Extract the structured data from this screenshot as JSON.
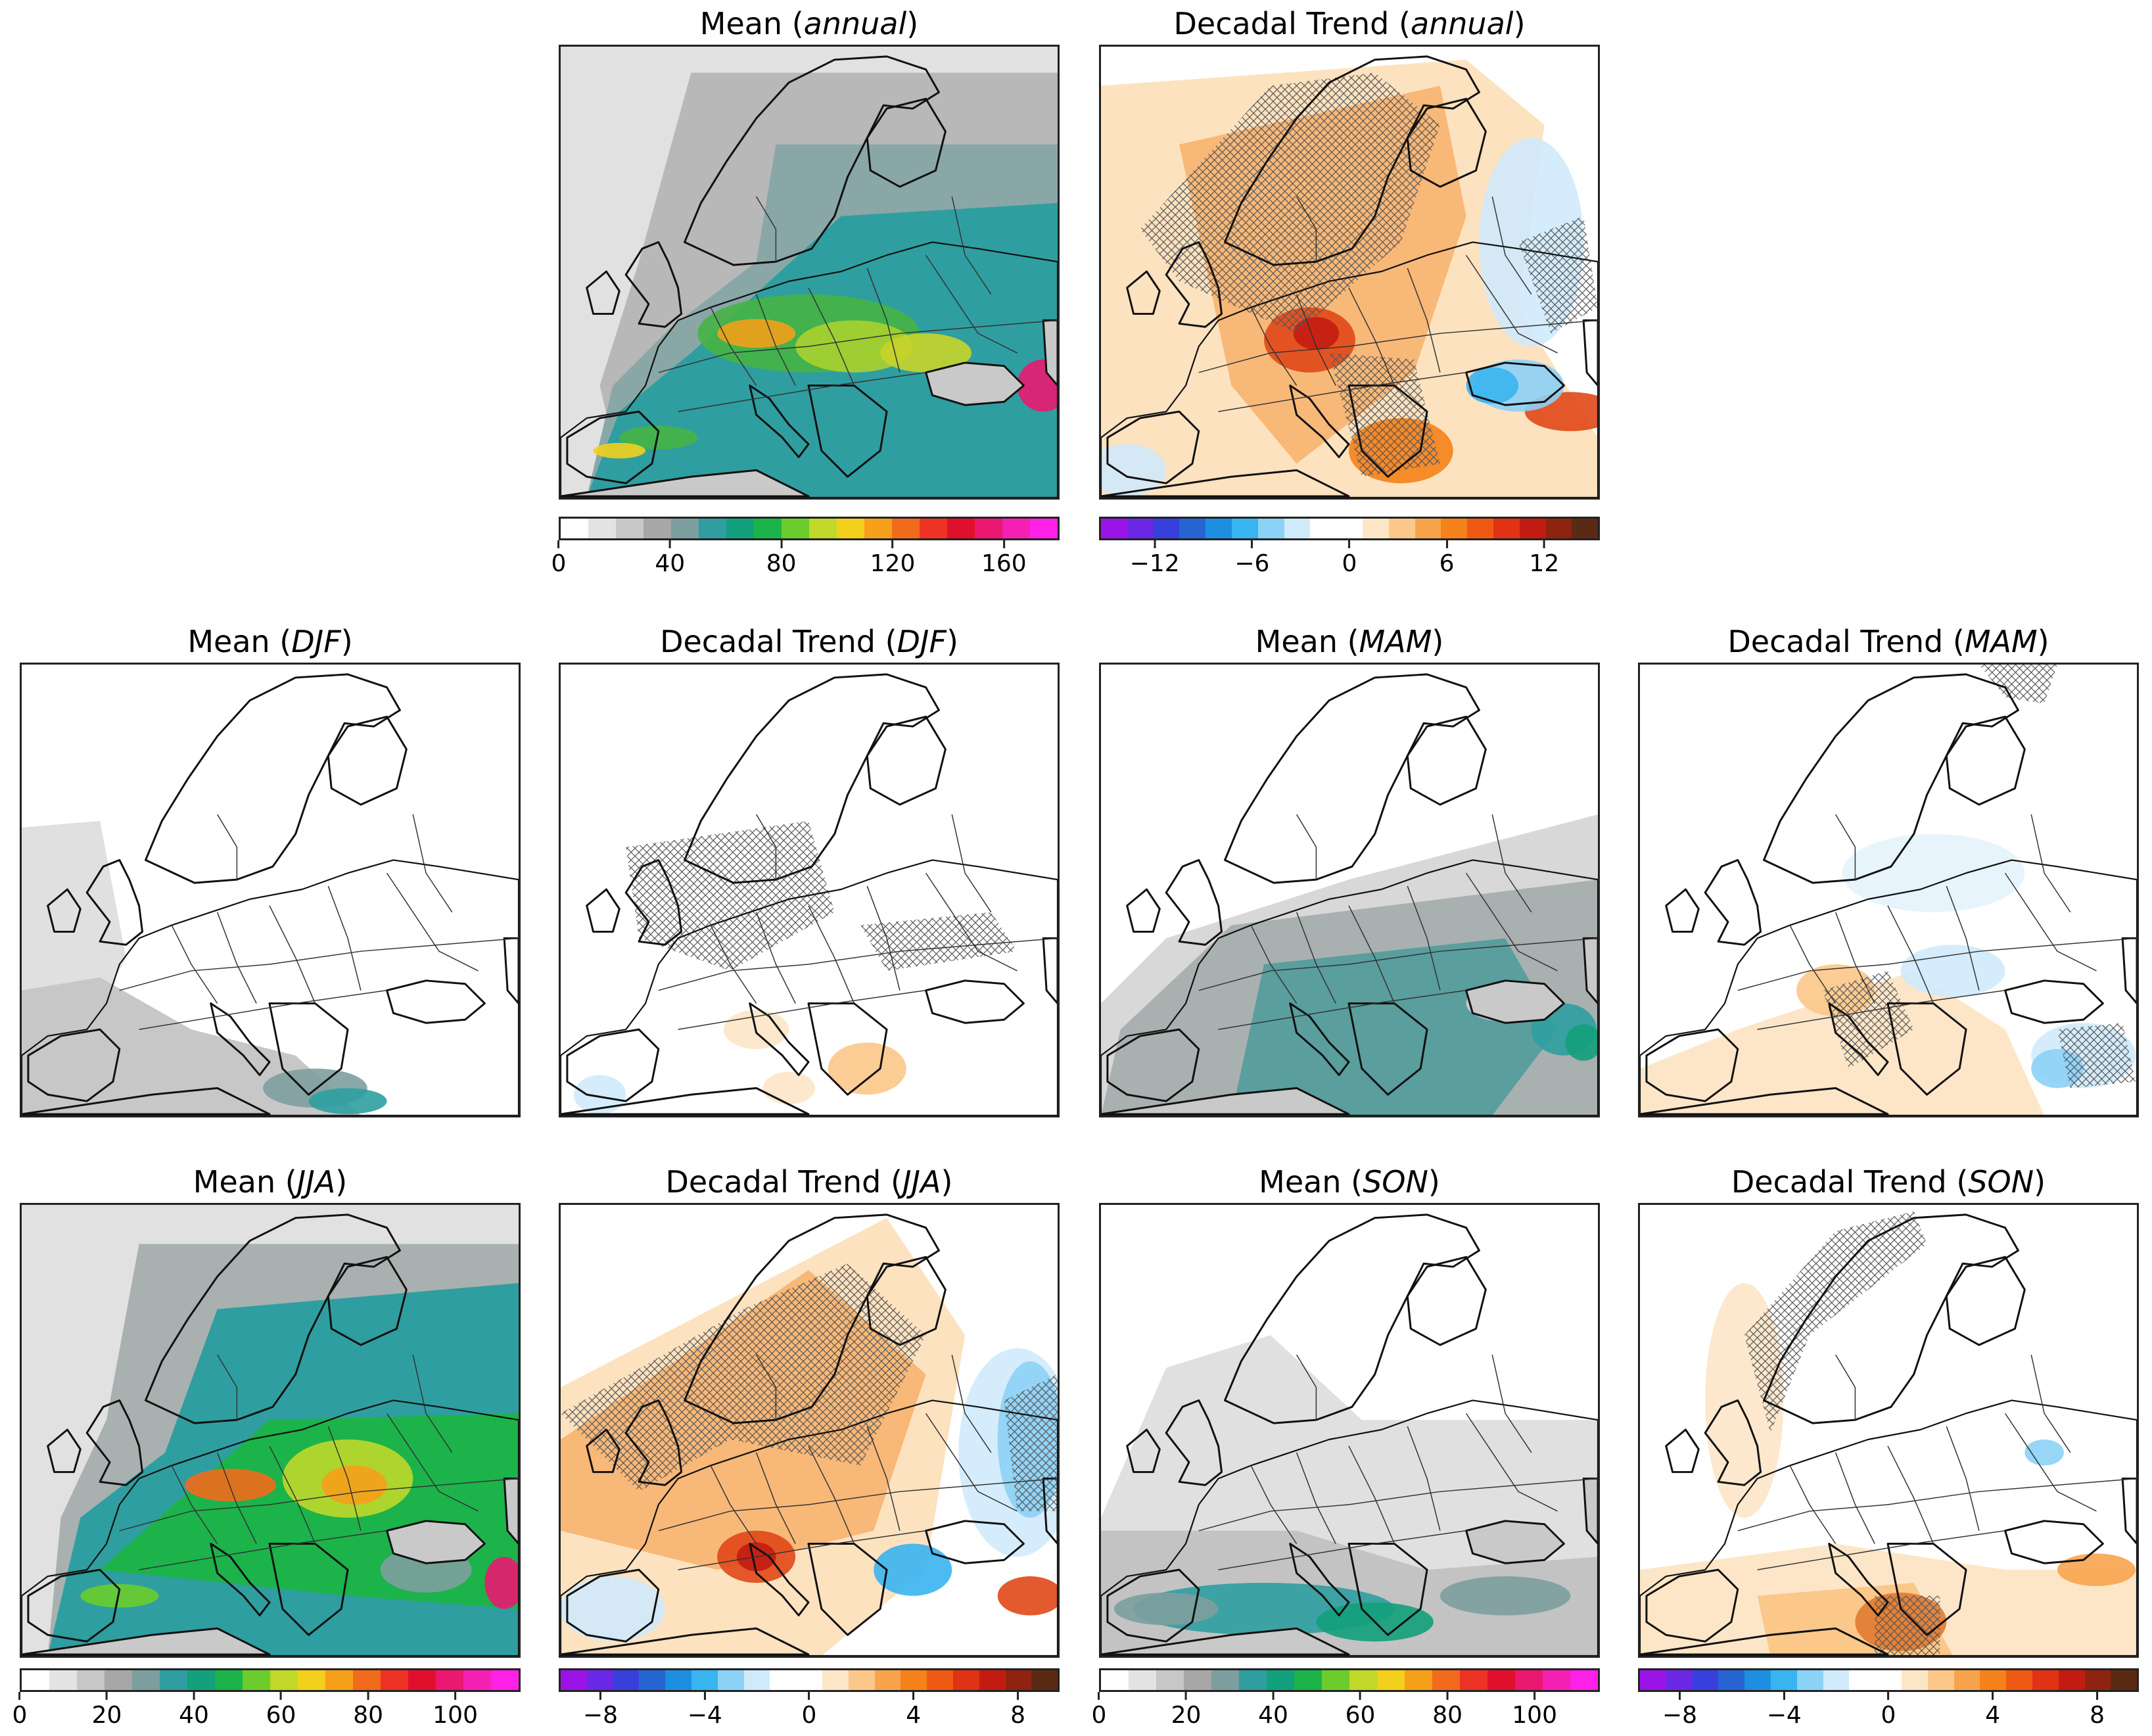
{
  "palettes": {
    "mean": [
      "#ffffff",
      "#e3e3e3",
      "#c7c7c7",
      "#a7a7a7",
      "#7d9e9e",
      "#2e9ea0",
      "#13a07c",
      "#1cb34a",
      "#6ccc2c",
      "#bfd82a",
      "#f2d01c",
      "#f6a01a",
      "#f26a1c",
      "#ee3224",
      "#e0102c",
      "#ea1870",
      "#f420b4",
      "#ff20e8"
    ],
    "trend": [
      "#9a14e8",
      "#6a28e6",
      "#3840dc",
      "#2664d2",
      "#1e8ee0",
      "#38b4f0",
      "#8cd2f6",
      "#cfeafb",
      "#ffffff",
      "#ffffff",
      "#fde6c8",
      "#fbc88a",
      "#f8a44c",
      "#f5821a",
      "#ee5a14",
      "#e03214",
      "#c21c12",
      "#8e2410",
      "#5a2a14"
    ]
  },
  "panels": [
    {
      "title_prefix": "Mean (",
      "title_italic": "annual",
      "title_suffix": ")",
      "kind": "mean",
      "variant": "annual",
      "colorbar": {
        "ticks": [
          {
            "label": "0",
            "frac": 0.0
          },
          {
            "label": "40",
            "frac": 0.2222
          },
          {
            "label": "80",
            "frac": 0.4444
          },
          {
            "label": "120",
            "frac": 0.6667
          },
          {
            "label": "160",
            "frac": 0.8889
          }
        ]
      }
    },
    {
      "title_prefix": "Decadal Trend (",
      "title_italic": "annual",
      "title_suffix": ")",
      "kind": "trend",
      "variant": "annual",
      "colorbar": {
        "ticks": [
          {
            "label": "−12",
            "frac": 0.1111
          },
          {
            "label": "−6",
            "frac": 0.3056
          },
          {
            "label": "0",
            "frac": 0.5
          },
          {
            "label": "6",
            "frac": 0.6944
          },
          {
            "label": "12",
            "frac": 0.8889
          }
        ]
      }
    },
    {
      "title_prefix": "Mean (",
      "title_italic": "DJF",
      "title_suffix": ")",
      "kind": "mean",
      "variant": "djf"
    },
    {
      "title_prefix": "Decadal Trend (",
      "title_italic": "DJF",
      "title_suffix": ")",
      "kind": "trend",
      "variant": "djf"
    },
    {
      "title_prefix": "Mean (",
      "title_italic": "MAM",
      "title_suffix": ")",
      "kind": "mean",
      "variant": "mam"
    },
    {
      "title_prefix": "Decadal Trend (",
      "title_italic": "MAM",
      "title_suffix": ")",
      "kind": "trend",
      "variant": "mam"
    },
    {
      "title_prefix": "Mean (",
      "title_italic": "JJA",
      "title_suffix": ")",
      "kind": "mean",
      "variant": "jja",
      "colorbar": {
        "ticks": [
          {
            "label": "0",
            "frac": 0.0
          },
          {
            "label": "20",
            "frac": 0.1739
          },
          {
            "label": "40",
            "frac": 0.3478
          },
          {
            "label": "60",
            "frac": 0.5217
          },
          {
            "label": "80",
            "frac": 0.6957
          },
          {
            "label": "100",
            "frac": 0.8696
          }
        ]
      }
    },
    {
      "title_prefix": "Decadal Trend (",
      "title_italic": "JJA",
      "title_suffix": ")",
      "kind": "trend",
      "variant": "jja",
      "colorbar": {
        "ticks": [
          {
            "label": "−8",
            "frac": 0.0833
          },
          {
            "label": "−4",
            "frac": 0.2917
          },
          {
            "label": "0",
            "frac": 0.5
          },
          {
            "label": "4",
            "frac": 0.7083
          },
          {
            "label": "8",
            "frac": 0.9167
          }
        ]
      }
    },
    {
      "title_prefix": "Mean (",
      "title_italic": "SON",
      "title_suffix": ")",
      "kind": "mean",
      "variant": "son",
      "colorbar": {
        "ticks": [
          {
            "label": "0",
            "frac": 0.0
          },
          {
            "label": "20",
            "frac": 0.1739
          },
          {
            "label": "40",
            "frac": 0.3478
          },
          {
            "label": "60",
            "frac": 0.5217
          },
          {
            "label": "80",
            "frac": 0.6957
          },
          {
            "label": "100",
            "frac": 0.8696
          }
        ]
      }
    },
    {
      "title_prefix": "Decadal Trend (",
      "title_italic": "SON",
      "title_suffix": ")",
      "kind": "trend",
      "variant": "son",
      "colorbar": {
        "ticks": [
          {
            "label": "−8",
            "frac": 0.0833
          },
          {
            "label": "−4",
            "frac": 0.2917
          },
          {
            "label": "0",
            "frac": 0.5
          },
          {
            "label": "4",
            "frac": 0.7083
          },
          {
            "label": "8",
            "frac": 0.9167
          }
        ]
      }
    }
  ],
  "chart_data": {
    "type": "heatmap",
    "description_units": "gridded map fields over Europe",
    "panels": [
      {
        "title": "Mean (annual)",
        "colorbar_range": [
          0,
          180
        ],
        "colorbar_ticks": [
          0,
          40,
          80,
          120,
          160
        ]
      },
      {
        "title": "Decadal Trend (annual)",
        "colorbar_range": [
          -14,
          14
        ],
        "colorbar_ticks": [
          -12,
          -6,
          0,
          6,
          12
        ]
      },
      {
        "title": "Mean (DJF)"
      },
      {
        "title": "Decadal Trend (DJF)"
      },
      {
        "title": "Mean (MAM)"
      },
      {
        "title": "Decadal Trend (MAM)"
      },
      {
        "title": "Mean (JJA)",
        "colorbar_range": [
          0,
          115
        ],
        "colorbar_ticks": [
          0,
          20,
          40,
          60,
          80,
          100
        ]
      },
      {
        "title": "Decadal Trend (JJA)",
        "colorbar_range": [
          -9.6,
          9.6
        ],
        "colorbar_ticks": [
          -8,
          -4,
          0,
          4,
          8
        ]
      },
      {
        "title": "Mean (SON)",
        "colorbar_range": [
          0,
          115
        ],
        "colorbar_ticks": [
          0,
          20,
          40,
          60,
          80,
          100
        ]
      },
      {
        "title": "Decadal Trend (SON)",
        "colorbar_range": [
          -9.6,
          9.6
        ],
        "colorbar_ticks": [
          -8,
          -4,
          0,
          4,
          8
        ]
      }
    ]
  }
}
